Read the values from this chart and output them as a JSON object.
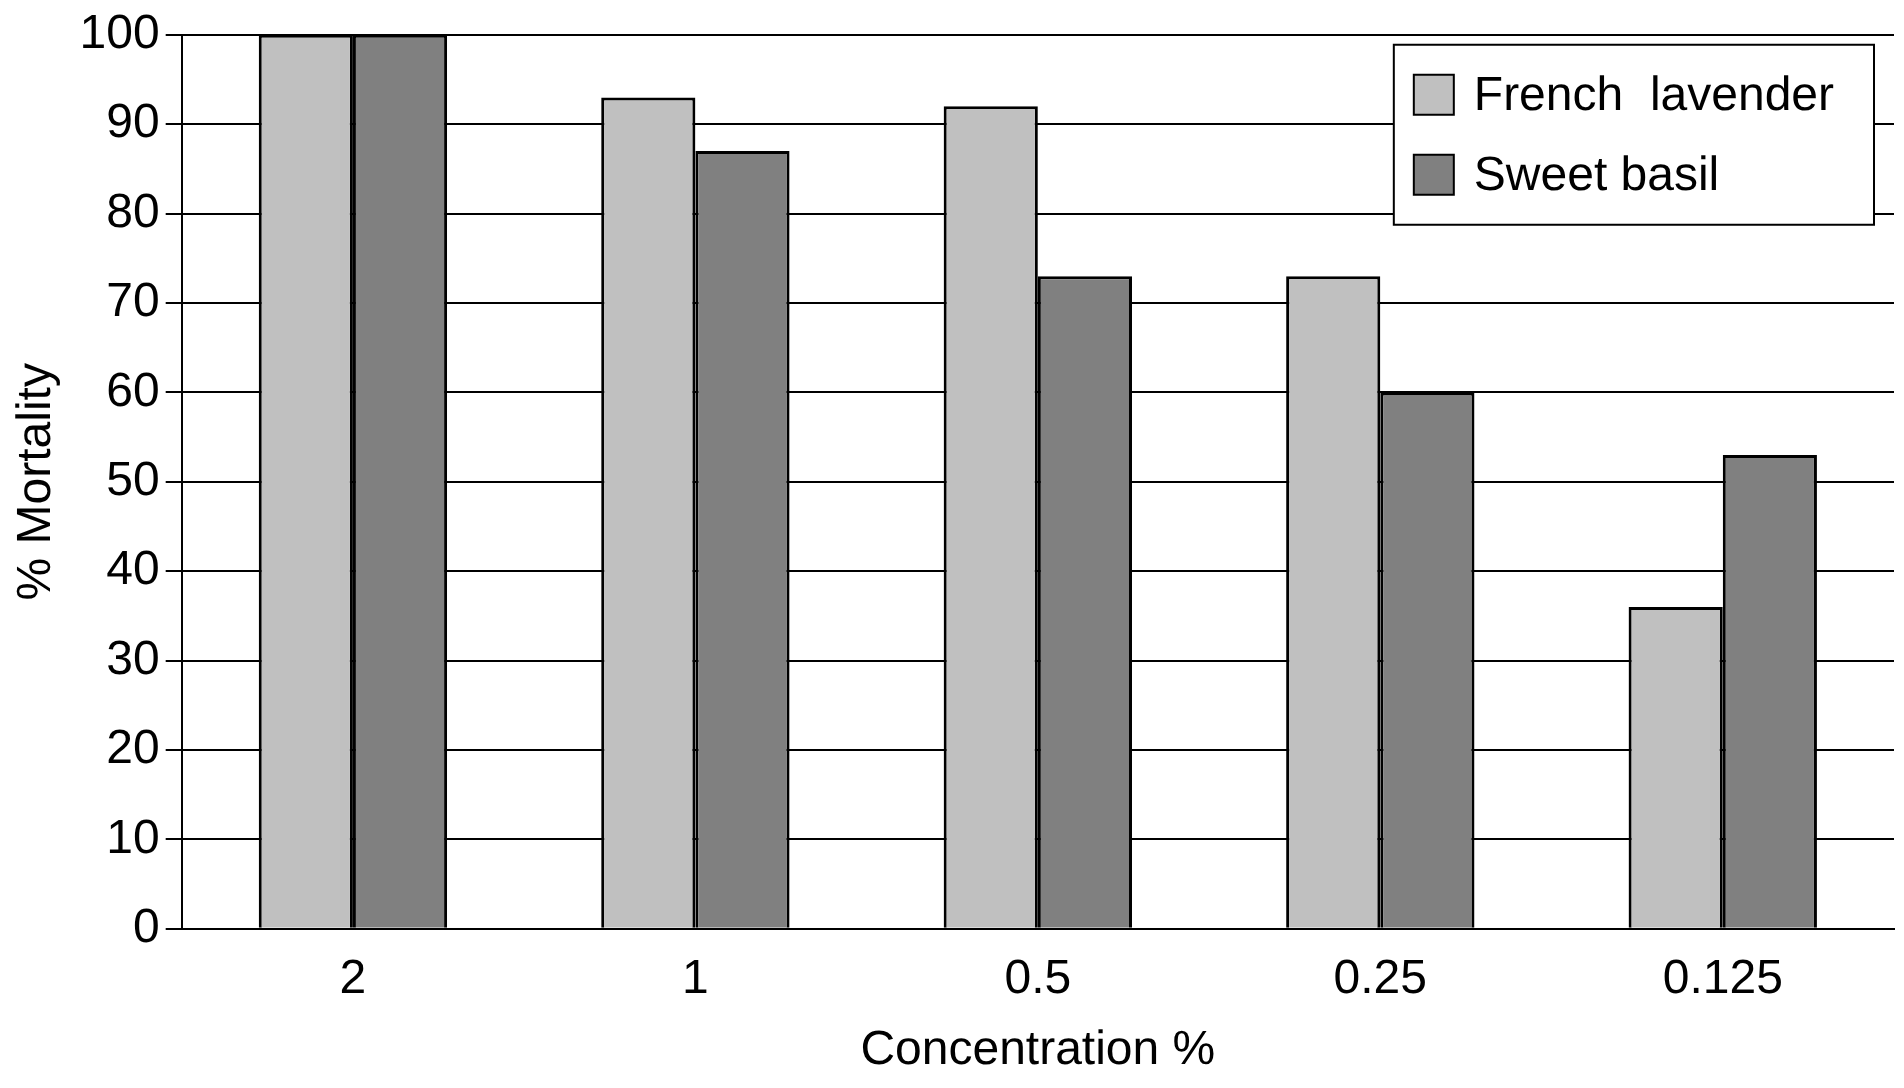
{
  "chart_data": {
    "type": "bar",
    "xlabel": "Concentration %",
    "ylabel": "% Mortality",
    "categories": [
      "2",
      "1",
      "0.5",
      "0.25",
      "0.125"
    ],
    "series": [
      {
        "name": "French  lavender",
        "color": "#c0c0c0",
        "values": [
          100,
          93,
          92,
          73,
          36
        ]
      },
      {
        "name": "Sweet basil",
        "color": "#808080",
        "values": [
          100,
          87,
          73,
          60,
          53
        ]
      }
    ],
    "ylim": [
      0,
      100
    ],
    "yticks": [
      0,
      10,
      20,
      30,
      40,
      50,
      60,
      70,
      80,
      90,
      100
    ],
    "grid": "y",
    "legend": "top right"
  }
}
